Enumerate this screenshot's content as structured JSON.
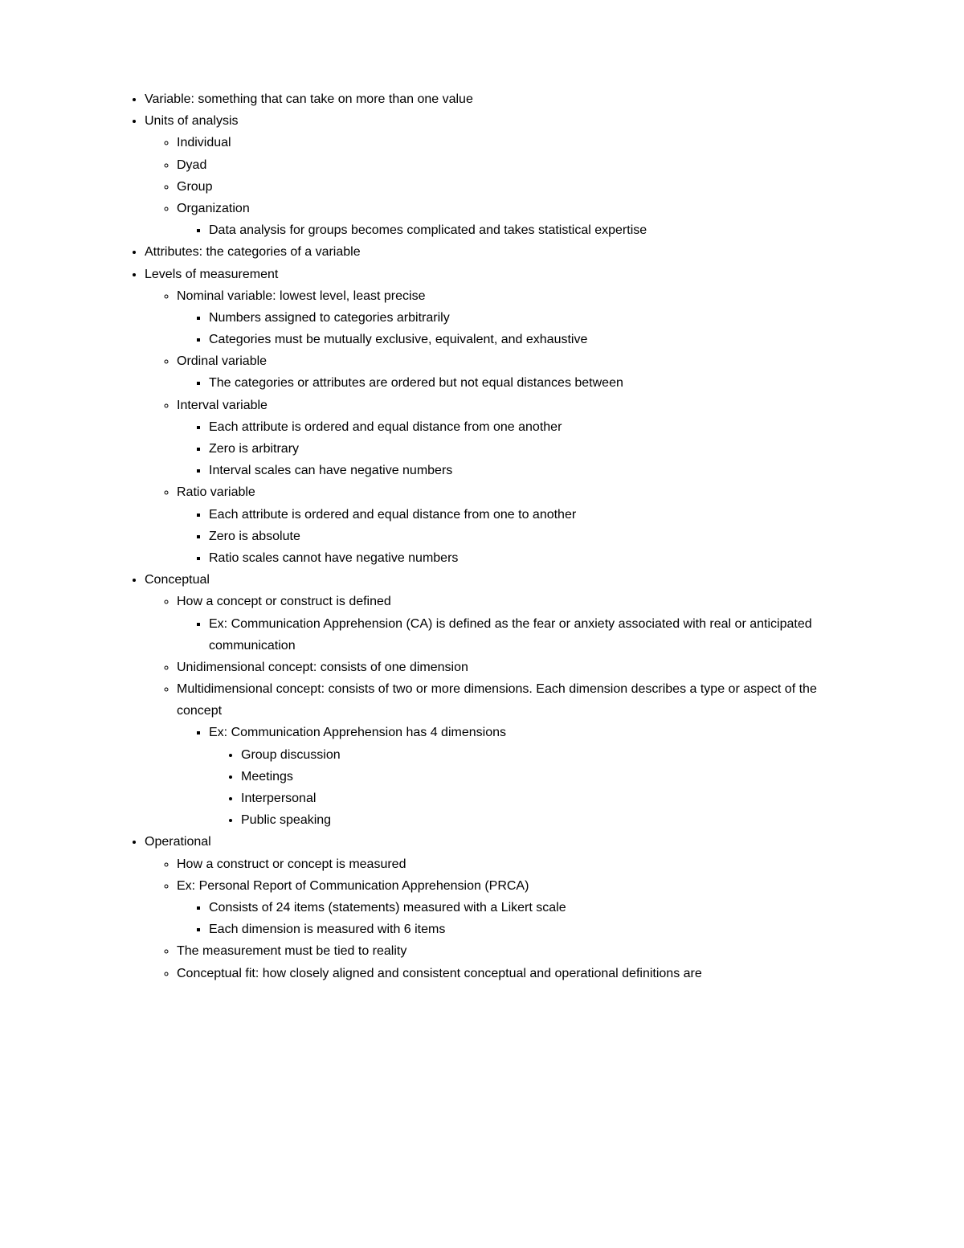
{
  "doc": {
    "font_family": "Arial",
    "font_size": 16,
    "text_color": "#000000",
    "background": "#ffffff",
    "items": {
      "variable": "Variable: something that can take on more than one value",
      "units": "Units of analysis",
      "units_individual": "Individual",
      "units_dyad": "Dyad",
      "units_group": "Group",
      "units_org": "Organization",
      "units_org_note": "Data analysis for groups becomes complicated and takes statistical expertise",
      "attributes": "Attributes: the categories of a variable",
      "levels": "Levels of measurement",
      "nominal": "Nominal variable: lowest level, least precise",
      "nominal_1": "Numbers assigned to categories arbitrarily",
      "nominal_2": "Categories must be mutually exclusive, equivalent, and exhaustive",
      "ordinal": "Ordinal variable",
      "ordinal_1": "The categories or attributes are ordered but not equal distances between",
      "interval": "Interval variable",
      "interval_1": "Each attribute is ordered and equal distance from one another",
      "interval_2": "Zero is arbitrary",
      "interval_3": "Interval scales can have negative numbers",
      "ratio": "Ratio variable",
      "ratio_1": "Each attribute is ordered and equal distance from one to another",
      "ratio_2": "Zero is absolute",
      "ratio_3": "Ratio scales cannot have negative numbers",
      "conceptual": "Conceptual",
      "conceptual_def": "How a concept or construct is defined",
      "conceptual_ex": "Ex: Communication Apprehension (CA) is defined as the fear or anxiety associated with real or anticipated communication",
      "unidim": "Unidimensional concept: consists of one dimension",
      "multidim": "Multidimensional concept: consists of two or more dimensions. Each dimension describes a type or aspect of the concept",
      "multidim_ex": "Ex: Communication Apprehension has 4 dimensions",
      "dim_group": "Group discussion",
      "dim_meet": "Meetings",
      "dim_inter": "Interpersonal",
      "dim_pub": "Public speaking",
      "operational": "Operational",
      "op_def": "How a construct or concept is measured",
      "op_ex": "Ex: Personal Report of Communication Apprehension (PRCA)",
      "op_ex_1": "Consists of 24 items (statements) measured with a Likert scale",
      "op_ex_2": "Each dimension is measured with 6 items",
      "op_reality": "The measurement must be tied to reality",
      "op_fit": "Conceptual fit: how closely aligned and consistent conceptual and operational definitions are"
    }
  }
}
